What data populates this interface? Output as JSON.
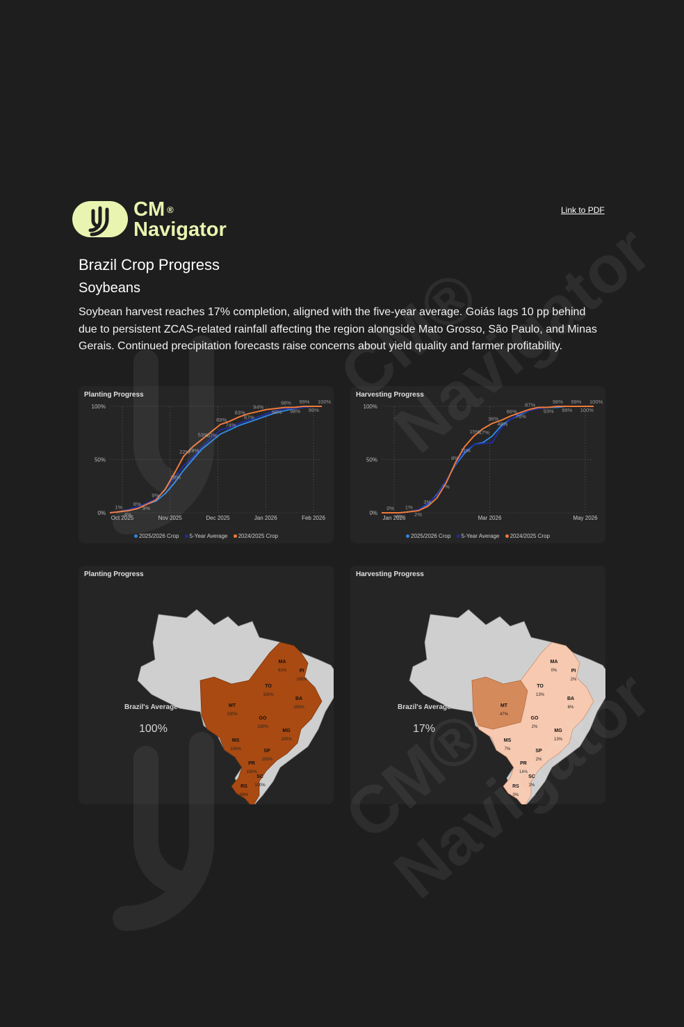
{
  "header": {
    "logo_line1": "CM",
    "logo_reg": "®",
    "logo_line2": "Navigator",
    "pdf_link": "Link to PDF"
  },
  "title": "Brazil Crop Progress",
  "subtitle": "Soybeans",
  "description": "Soybean harvest reaches 17% completion, aligned with the five-year average. Goiás lags 10 pp behind due to persistent ZCAS-related rainfall affecting the region alongside Mato Grosso, São Paulo, and Minas Gerais. Continued precipitation forecasts raise concerns about yield quality and farmer profitability.",
  "colors": {
    "series_2025_2026": "#2e86de",
    "series_5yr": "#1f2d9c",
    "series_2024_2025": "#f07a3a",
    "map_planting": "#a94a12",
    "map_harvest_light": "#f6c9b0",
    "map_harvest_dark": "#d58a5c",
    "map_other": "#cfcfcf"
  },
  "legend": [
    "2025/2026 Crop",
    "5-Year Average",
    "2024/2025 Crop"
  ],
  "chart_data": [
    {
      "type": "line",
      "title": "Planting Progress",
      "x_ticks": [
        "Oct 2025",
        "Nov 2025",
        "Dec 2025",
        "Jan 2026",
        "Feb 2026"
      ],
      "y_ticks": [
        "0%",
        "50%",
        "100%"
      ],
      "ylim": [
        0,
        100
      ],
      "x": [
        0,
        4,
        8,
        12,
        16,
        20,
        24,
        28,
        32,
        36,
        40,
        44,
        48,
        52,
        56,
        60,
        64,
        68,
        72,
        76,
        80,
        84,
        88,
        92
      ],
      "series": [
        {
          "name": "2025/2026 Crop",
          "values": [
            0,
            1,
            2,
            4,
            8,
            11,
            18,
            28,
            40,
            50,
            60,
            67,
            74,
            78,
            82,
            85,
            88,
            91,
            94,
            96,
            98,
            99,
            100,
            100
          ]
        },
        {
          "name": "5-Year Average",
          "values": [
            0,
            1,
            3,
            6,
            9,
            13,
            22,
            33,
            44,
            52,
            62,
            70,
            78,
            80,
            84,
            87,
            90,
            93,
            96,
            98,
            98,
            99,
            100,
            100
          ]
        },
        {
          "name": "2024/2025 Crop",
          "values": [
            0,
            1,
            2,
            4,
            8,
            12,
            22,
            37,
            53,
            62,
            69,
            76,
            83,
            86,
            90,
            93,
            95,
            97,
            98,
            99,
            99,
            100,
            100,
            100
          ]
        }
      ],
      "data_labels": [
        "1%",
        "4%",
        "8%",
        "9%",
        "9%",
        "18%",
        "22%",
        "28%",
        "53%",
        "67%",
        "69%",
        "74%",
        "83%",
        "87%",
        "94%",
        "98%",
        "98%",
        "98%",
        "99%",
        "99%",
        "100%"
      ]
    },
    {
      "type": "line",
      "title": "Harvesting Progress",
      "x_ticks": [
        "Jan 2026",
        "Mar 2026",
        "May 2026"
      ],
      "y_ticks": [
        "0%",
        "50%",
        "100%"
      ],
      "ylim": [
        0,
        100
      ],
      "x": [
        0,
        4,
        8,
        12,
        16,
        20,
        24,
        28,
        32,
        36,
        40,
        44,
        48,
        52,
        56,
        60,
        64,
        68,
        72,
        76,
        80,
        84,
        88,
        92
      ],
      "series": [
        {
          "name": "2025/2026 Crop",
          "values": [
            0,
            0,
            0,
            1,
            3,
            8,
            17,
            30,
            45,
            56,
            64,
            66,
            72,
            82,
            88,
            92,
            96,
            98,
            99,
            99,
            100,
            100,
            100,
            100
          ]
        },
        {
          "name": "5-Year Average",
          "values": [
            0,
            0,
            0,
            1,
            3,
            9,
            16,
            30,
            46,
            58,
            64,
            65,
            66,
            80,
            88,
            93,
            96,
            98,
            99,
            100,
            100,
            100,
            100,
            100
          ]
        },
        {
          "name": "2024/2025 Crop",
          "values": [
            0,
            0,
            0,
            1,
            2,
            6,
            14,
            28,
            47,
            62,
            72,
            79,
            84,
            87,
            91,
            94,
            97,
            99,
            99,
            100,
            100,
            100,
            100,
            100
          ]
        }
      ],
      "data_labels": [
        "0%",
        "0%",
        "1%",
        "2%",
        "3%",
        "7%",
        "8%",
        "11%",
        "15%",
        "17%",
        "36%",
        "48%",
        "66%",
        "76%",
        "87%",
        "93%",
        "96%",
        "99%",
        "99%",
        "100%",
        "100%"
      ]
    }
  ],
  "maps": [
    {
      "title": "Planting Progress",
      "avg_label": "Brazil's Average",
      "avg_value": "100%",
      "states": [
        {
          "name": "MA",
          "value": "91%"
        },
        {
          "name": "PI",
          "value": "100%"
        },
        {
          "name": "TO",
          "value": "100%"
        },
        {
          "name": "BA",
          "value": "100%"
        },
        {
          "name": "MT",
          "value": "100%"
        },
        {
          "name": "GO",
          "value": "100%"
        },
        {
          "name": "MG",
          "value": "100%"
        },
        {
          "name": "MS",
          "value": "100%"
        },
        {
          "name": "SP",
          "value": "100%"
        },
        {
          "name": "PR",
          "value": "100%"
        },
        {
          "name": "SC",
          "value": "100%"
        },
        {
          "name": "RS",
          "value": "99%"
        }
      ]
    },
    {
      "title": "Harvesting Progress",
      "avg_label": "Brazil's Average",
      "avg_value": "17%",
      "states": [
        {
          "name": "MA",
          "value": "0%"
        },
        {
          "name": "PI",
          "value": "2%"
        },
        {
          "name": "TO",
          "value": "13%"
        },
        {
          "name": "BA",
          "value": "6%"
        },
        {
          "name": "MT",
          "value": "47%"
        },
        {
          "name": "GO",
          "value": "2%"
        },
        {
          "name": "MG",
          "value": "13%"
        },
        {
          "name": "MS",
          "value": "7%"
        },
        {
          "name": "SP",
          "value": "2%"
        },
        {
          "name": "PR",
          "value": "14%"
        },
        {
          "name": "SC",
          "value": "2%"
        },
        {
          "name": "RS",
          "value": "0%"
        }
      ]
    }
  ],
  "watermark": "CM® Navigator"
}
